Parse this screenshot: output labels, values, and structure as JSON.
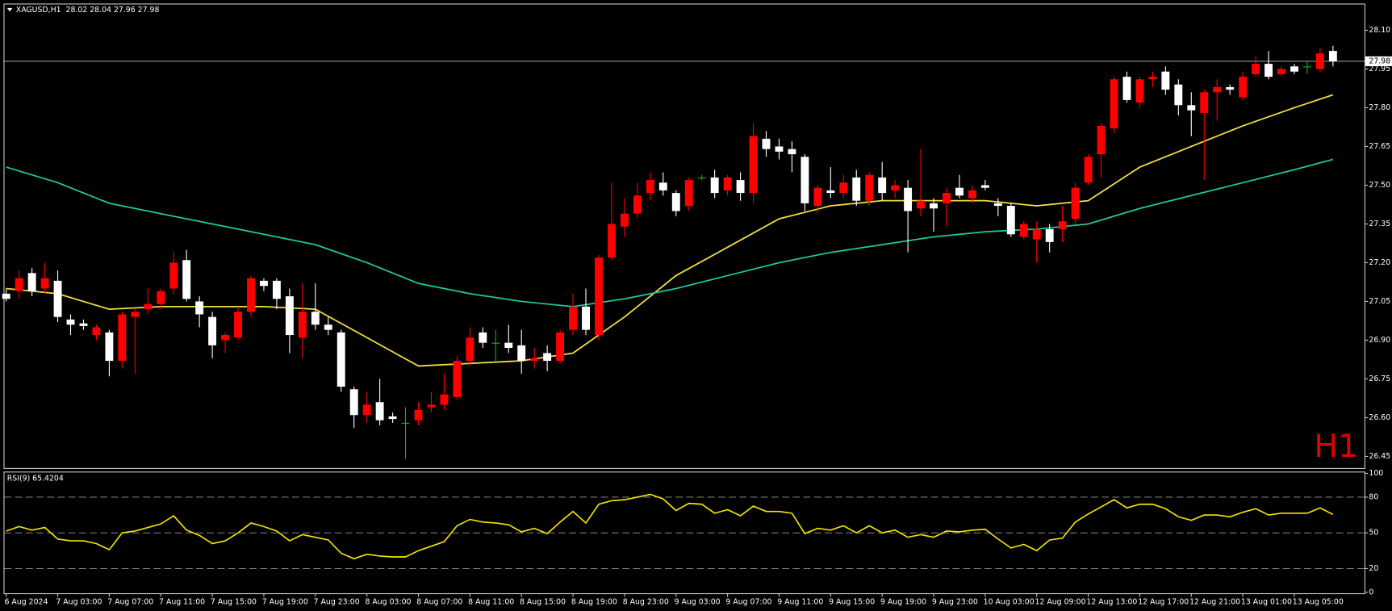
{
  "chart_data": [
    {
      "type": "candlestick",
      "title": "XAGUSD,H1  28.02 28.04 27.96 27.98",
      "categories": [
        "6 Aug 2024",
        null,
        null,
        null,
        "7 Aug 03:00",
        null,
        null,
        null,
        "7 Aug 07:00",
        null,
        null,
        null,
        "7 Aug 11:00",
        null,
        null,
        null,
        "7 Aug 15:00",
        null,
        null,
        null,
        "7 Aug 19:00",
        null,
        null,
        null,
        "7 Aug 23:00",
        null,
        null,
        null,
        "8 Aug 03:00",
        null,
        null,
        null,
        "8 Aug 07:00",
        null,
        null,
        null,
        "8 Aug 11:00",
        null,
        null,
        null,
        "8 Aug 15:00",
        null,
        null,
        null,
        "8 Aug 19:00",
        null,
        null,
        null,
        "8 Aug 23:00",
        null,
        null,
        null,
        "9 Aug 03:00",
        null,
        null,
        null,
        "9 Aug 07:00",
        null,
        null,
        null,
        "9 Aug 11:00",
        null,
        null,
        null,
        "9 Aug 15:00",
        null,
        null,
        null,
        "9 Aug 19:00",
        null,
        null,
        null,
        "9 Aug 23:00",
        null,
        null,
        null,
        "10 Aug 03:00",
        null,
        null,
        null,
        "12 Aug 09:00",
        null,
        null,
        null,
        "12 Aug 13:00",
        null,
        null,
        null,
        "12 Aug 17:00",
        null,
        null,
        null,
        "12 Aug 21:00",
        null,
        null,
        null,
        "13 Aug 01:00",
        null,
        null,
        null,
        "13 Aug 05:00",
        null,
        null,
        null
      ],
      "open": [
        27.08,
        27.09,
        27.16,
        27.1,
        27.13,
        26.98,
        26.965,
        26.92,
        26.93,
        26.82,
        26.99,
        27.02,
        27.04,
        27.1,
        27.21,
        27.05,
        26.99,
        26.9,
        26.91,
        27.01,
        27.13,
        27.13,
        27.07,
        26.91,
        27.01,
        26.96,
        26.93,
        26.71,
        26.61,
        26.66,
        26.605,
        26.58,
        26.59,
        26.64,
        26.65,
        26.68,
        26.82,
        26.93,
        26.89,
        26.89,
        26.88,
        26.82,
        26.85,
        26.82,
        26.94,
        27.03,
        26.92,
        27.22,
        27.34,
        27.39,
        27.47,
        27.51,
        27.47,
        27.42,
        27.53,
        27.53,
        27.48,
        27.52,
        27.47,
        27.68,
        27.65,
        27.64,
        27.61,
        27.42,
        27.48,
        27.47,
        27.53,
        27.44,
        27.53,
        27.48,
        27.49,
        27.41,
        27.43,
        27.43,
        27.49,
        27.45,
        27.5,
        27.43,
        27.42,
        27.3,
        27.29,
        27.33,
        27.33,
        27.37,
        27.51,
        27.62,
        27.72,
        27.92,
        27.82,
        27.91,
        27.94,
        27.89,
        27.81,
        27.78,
        27.86,
        27.88,
        27.84,
        27.93,
        27.97,
        27.93,
        27.96,
        27.96,
        27.95,
        28.02
      ],
      "high": [
        27.1,
        27.17,
        27.18,
        27.2,
        27.17,
        27.0,
        26.98,
        26.96,
        26.94,
        27.01,
        27.02,
        27.1,
        27.1,
        27.24,
        27.25,
        27.07,
        27.01,
        26.93,
        27.03,
        27.15,
        27.14,
        27.14,
        27.1,
        27.12,
        27.12,
        26.99,
        26.94,
        26.72,
        26.7,
        26.75,
        26.62,
        26.64,
        26.66,
        26.7,
        26.77,
        26.84,
        26.95,
        26.95,
        26.94,
        26.96,
        26.94,
        26.87,
        26.88,
        26.94,
        27.08,
        27.1,
        27.23,
        27.51,
        27.45,
        27.51,
        27.55,
        27.55,
        27.48,
        27.53,
        27.54,
        27.56,
        27.54,
        27.55,
        27.74,
        27.71,
        27.68,
        27.67,
        27.62,
        27.5,
        27.57,
        27.54,
        27.56,
        27.55,
        27.59,
        27.52,
        27.52,
        27.64,
        27.45,
        27.49,
        27.54,
        27.5,
        27.52,
        27.45,
        27.43,
        27.36,
        27.36,
        27.35,
        27.42,
        27.51,
        27.62,
        27.74,
        27.92,
        27.94,
        27.92,
        27.94,
        27.96,
        27.91,
        27.86,
        27.87,
        27.91,
        27.89,
        27.94,
        28.0,
        28.02,
        27.96,
        27.97,
        27.98,
        28.03,
        28.04
      ],
      "low": [
        27.05,
        27.06,
        27.07,
        27.08,
        26.97,
        26.92,
        26.94,
        26.9,
        26.76,
        26.79,
        26.77,
        27.0,
        27.02,
        27.08,
        27.05,
        26.95,
        26.83,
        26.85,
        26.9,
        26.99,
        27.09,
        27.02,
        26.85,
        26.83,
        26.94,
        26.92,
        26.7,
        26.56,
        26.58,
        26.57,
        26.58,
        26.44,
        26.57,
        26.62,
        26.63,
        26.67,
        26.8,
        26.87,
        26.82,
        26.85,
        26.77,
        26.79,
        26.78,
        26.81,
        26.92,
        26.92,
        26.9,
        27.21,
        27.3,
        27.37,
        27.44,
        27.46,
        27.38,
        27.4,
        27.52,
        27.45,
        27.46,
        27.44,
        27.43,
        27.61,
        27.6,
        27.55,
        27.4,
        27.39,
        27.45,
        27.45,
        27.42,
        27.42,
        27.44,
        27.45,
        27.24,
        27.38,
        27.32,
        27.34,
        27.45,
        27.43,
        27.48,
        27.38,
        27.3,
        27.29,
        27.2,
        27.24,
        27.28,
        27.35,
        27.5,
        27.53,
        27.7,
        27.82,
        27.8,
        27.88,
        27.85,
        27.77,
        27.69,
        27.52,
        27.75,
        27.85,
        27.83,
        27.92,
        27.91,
        27.92,
        27.93,
        27.93,
        27.94,
        27.96
      ],
      "close": [
        27.06,
        27.14,
        27.09,
        27.14,
        26.99,
        26.96,
        26.955,
        26.95,
        26.82,
        27.0,
        27.01,
        27.04,
        27.09,
        27.2,
        27.06,
        27.0,
        26.88,
        26.92,
        27.01,
        27.14,
        27.11,
        27.06,
        26.92,
        27.01,
        26.96,
        26.94,
        26.72,
        26.61,
        26.65,
        26.59,
        26.595,
        26.58,
        26.63,
        26.65,
        26.69,
        26.82,
        26.91,
        26.89,
        26.89,
        26.87,
        26.82,
        26.83,
        26.82,
        26.93,
        27.03,
        26.94,
        27.22,
        27.35,
        27.39,
        27.46,
        27.52,
        27.48,
        27.4,
        27.52,
        27.53,
        27.47,
        27.53,
        27.47,
        27.69,
        27.64,
        27.63,
        27.62,
        27.43,
        27.49,
        27.47,
        27.51,
        27.44,
        27.54,
        27.47,
        27.5,
        27.4,
        27.44,
        27.41,
        27.47,
        27.46,
        27.48,
        27.49,
        27.42,
        27.31,
        27.35,
        27.33,
        27.28,
        27.36,
        27.49,
        27.61,
        27.73,
        27.91,
        27.83,
        27.91,
        27.92,
        27.87,
        27.81,
        27.79,
        27.86,
        27.88,
        27.87,
        27.92,
        27.97,
        27.92,
        27.95,
        27.94,
        27.96,
        28.01,
        27.98
      ],
      "up_color": "#ff0000",
      "down_color": "#ffffff",
      "doji_color": "#00c000",
      "ylim": [
        26.405,
        28.2
      ],
      "yticks": [
        26.45,
        {
          "value": 26.6,
          "label": "26.60"
        },
        26.75,
        {
          "value": 26.9,
          "label": "26.90"
        },
        27.05,
        {
          "value": 27.2,
          "label": "27.20"
        },
        27.35,
        {
          "value": 27.5,
          "label": "27.50"
        },
        27.65,
        {
          "value": 27.8,
          "label": "27.80"
        },
        27.95,
        {
          "value": 28.1,
          "label": "28.10"
        }
      ],
      "overlays": [
        {
          "color": "#f0e040",
          "x": [
            0,
            4,
            8,
            12,
            16,
            20,
            24,
            28,
            32,
            36,
            40,
            44,
            48,
            52,
            56,
            60,
            64,
            68,
            72,
            76,
            80,
            84,
            88,
            92,
            96,
            100,
            103
          ],
          "values": [
            27.1,
            27.08,
            27.02,
            27.03,
            27.03,
            27.03,
            27.02,
            26.91,
            26.8,
            26.81,
            26.82,
            26.85,
            26.99,
            27.15,
            27.26,
            27.37,
            27.42,
            27.44,
            27.44,
            27.44,
            27.42,
            27.44,
            27.57,
            27.65,
            27.73,
            27.8,
            27.85
          ]
        },
        {
          "color": "#1fc8a0",
          "x": [
            0,
            4,
            8,
            12,
            16,
            20,
            24,
            28,
            32,
            36,
            40,
            44,
            48,
            52,
            56,
            60,
            64,
            68,
            72,
            76,
            80,
            84,
            88,
            92,
            96,
            100,
            103
          ],
          "values": [
            27.57,
            27.51,
            27.43,
            27.39,
            27.35,
            27.31,
            27.27,
            27.2,
            27.12,
            27.08,
            27.05,
            27.03,
            27.06,
            27.1,
            27.15,
            27.2,
            27.24,
            27.27,
            27.3,
            27.32,
            27.33,
            27.35,
            27.41,
            27.46,
            27.51,
            27.56,
            27.6
          ]
        }
      ],
      "current_price": 27.98,
      "current_price_color": "#c0c0c0",
      "annotation": "H1",
      "annotation_color": "#e00000"
    },
    {
      "type": "line",
      "title": "RSI(9) 65.4204",
      "color": "#f5e400",
      "values": [
        51.5,
        55.3,
        52.3,
        54.5,
        44.8,
        43.3,
        43.3,
        41,
        35.8,
        50,
        51.5,
        54.5,
        57.5,
        64.3,
        52.3,
        47.8,
        41,
        43.3,
        50,
        58.3,
        55.3,
        51.5,
        43.3,
        48.5,
        46.3,
        44,
        32.8,
        28.3,
        32,
        30.5,
        29.8,
        29.8,
        35,
        38.8,
        42.5,
        56,
        61.3,
        59,
        58.3,
        56.8,
        50.8,
        53.8,
        49.3,
        59,
        68,
        58.3,
        74,
        77,
        77.8,
        80,
        82.3,
        78.5,
        68.8,
        74.8,
        74,
        66.5,
        69.5,
        64.3,
        72.5,
        68,
        68,
        66.5,
        49.3,
        53.8,
        52.3,
        56,
        50,
        56,
        50,
        52.3,
        46.3,
        48.5,
        46.3,
        51.5,
        50.8,
        52.3,
        53,
        44.8,
        37.3,
        40.3,
        35,
        44,
        45.5,
        59,
        65.8,
        71.8,
        77.8,
        71,
        74,
        74,
        70.3,
        63.5,
        60.5,
        65,
        65,
        63.5,
        67.3,
        70.3,
        65,
        66.5,
        66.5,
        66.5,
        71,
        65.4204
      ],
      "ylim": [
        0,
        100
      ],
      "yticks": [
        0,
        20,
        50,
        80,
        100
      ],
      "levels": [
        20,
        50,
        80
      ]
    }
  ]
}
